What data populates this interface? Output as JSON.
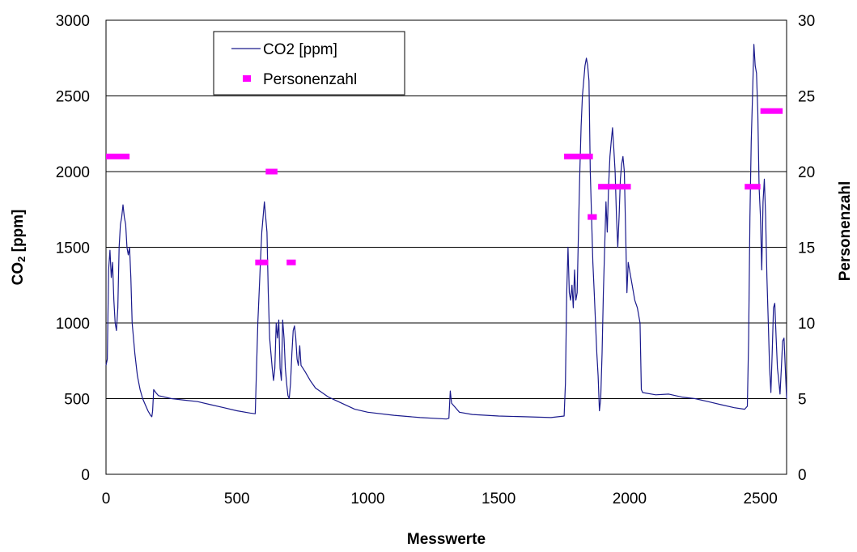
{
  "chart_data": {
    "type": "line",
    "xlabel": "Messwerte",
    "ylabel_main": "CO",
    "ylabel_sub": "2",
    "ylabel_unit": " [ppm]",
    "y2label": "Personenzahl",
    "xlim": [
      0,
      2600
    ],
    "ylim": [
      0,
      3000
    ],
    "y2lim": [
      0,
      30
    ],
    "x_ticks": [
      "0",
      "500",
      "1000",
      "1500",
      "2000",
      "2500"
    ],
    "y_ticks": [
      "0",
      "500",
      "1000",
      "1500",
      "2000",
      "2500",
      "3000"
    ],
    "y2_ticks": [
      "0",
      "5",
      "10",
      "15",
      "20",
      "25",
      "30"
    ],
    "grid": "horizontal",
    "legend_placement": "top-left",
    "legend": [
      "CO2 [ppm]",
      "Personenzahl"
    ],
    "colors": {
      "co2": "#1a1a8c",
      "persons": "#ff00ff"
    },
    "series": [
      {
        "name": "CO2 [ppm]",
        "points": [
          [
            0,
            720
          ],
          [
            5,
            760
          ],
          [
            10,
            1350
          ],
          [
            15,
            1480
          ],
          [
            20,
            1300
          ],
          [
            25,
            1400
          ],
          [
            30,
            1150
          ],
          [
            35,
            1000
          ],
          [
            40,
            950
          ],
          [
            45,
            1100
          ],
          [
            50,
            1500
          ],
          [
            55,
            1650
          ],
          [
            60,
            1700
          ],
          [
            65,
            1780
          ],
          [
            70,
            1700
          ],
          [
            75,
            1650
          ],
          [
            80,
            1500
          ],
          [
            85,
            1450
          ],
          [
            90,
            1500
          ],
          [
            95,
            1300
          ],
          [
            100,
            1000
          ],
          [
            110,
            800
          ],
          [
            120,
            650
          ],
          [
            130,
            560
          ],
          [
            140,
            500
          ],
          [
            150,
            460
          ],
          [
            160,
            420
          ],
          [
            170,
            390
          ],
          [
            175,
            380
          ],
          [
            178,
            420
          ],
          [
            182,
            560
          ],
          [
            190,
            540
          ],
          [
            200,
            520
          ],
          [
            250,
            500
          ],
          [
            300,
            490
          ],
          [
            350,
            480
          ],
          [
            400,
            460
          ],
          [
            450,
            440
          ],
          [
            500,
            420
          ],
          [
            550,
            405
          ],
          [
            570,
            400
          ],
          [
            575,
            700
          ],
          [
            580,
            1000
          ],
          [
            585,
            1200
          ],
          [
            590,
            1400
          ],
          [
            595,
            1600
          ],
          [
            600,
            1700
          ],
          [
            605,
            1800
          ],
          [
            610,
            1700
          ],
          [
            615,
            1600
          ],
          [
            620,
            1200
          ],
          [
            625,
            900
          ],
          [
            630,
            800
          ],
          [
            635,
            700
          ],
          [
            640,
            620
          ],
          [
            645,
            700
          ],
          [
            650,
            1000
          ],
          [
            655,
            900
          ],
          [
            660,
            1020
          ],
          [
            665,
            700
          ],
          [
            670,
            620
          ],
          [
            675,
            1020
          ],
          [
            680,
            900
          ],
          [
            685,
            700
          ],
          [
            690,
            600
          ],
          [
            695,
            520
          ],
          [
            700,
            500
          ],
          [
            705,
            600
          ],
          [
            710,
            800
          ],
          [
            715,
            950
          ],
          [
            720,
            980
          ],
          [
            725,
            900
          ],
          [
            730,
            760
          ],
          [
            735,
            720
          ],
          [
            740,
            850
          ],
          [
            745,
            720
          ],
          [
            760,
            680
          ],
          [
            780,
            620
          ],
          [
            800,
            570
          ],
          [
            850,
            510
          ],
          [
            900,
            470
          ],
          [
            950,
            430
          ],
          [
            1000,
            410
          ],
          [
            1100,
            390
          ],
          [
            1200,
            375
          ],
          [
            1300,
            365
          ],
          [
            1310,
            370
          ],
          [
            1315,
            550
          ],
          [
            1320,
            470
          ],
          [
            1350,
            410
          ],
          [
            1400,
            395
          ],
          [
            1500,
            385
          ],
          [
            1600,
            380
          ],
          [
            1700,
            375
          ],
          [
            1750,
            385
          ],
          [
            1755,
            600
          ],
          [
            1760,
            1200
          ],
          [
            1765,
            1500
          ],
          [
            1770,
            1200
          ],
          [
            1775,
            1150
          ],
          [
            1780,
            1250
          ],
          [
            1785,
            1100
          ],
          [
            1790,
            1350
          ],
          [
            1795,
            1150
          ],
          [
            1800,
            1200
          ],
          [
            1805,
            1600
          ],
          [
            1810,
            2000
          ],
          [
            1815,
            2300
          ],
          [
            1820,
            2500
          ],
          [
            1825,
            2600
          ],
          [
            1830,
            2700
          ],
          [
            1835,
            2750
          ],
          [
            1840,
            2700
          ],
          [
            1845,
            2600
          ],
          [
            1850,
            2000
          ],
          [
            1855,
            1700
          ],
          [
            1860,
            1400
          ],
          [
            1865,
            1200
          ],
          [
            1870,
            1000
          ],
          [
            1875,
            800
          ],
          [
            1880,
            650
          ],
          [
            1885,
            420
          ],
          [
            1890,
            500
          ],
          [
            1895,
            800
          ],
          [
            1900,
            1200
          ],
          [
            1905,
            1500
          ],
          [
            1910,
            1800
          ],
          [
            1915,
            1600
          ],
          [
            1920,
            1900
          ],
          [
            1925,
            2100
          ],
          [
            1930,
            2200
          ],
          [
            1935,
            2290
          ],
          [
            1940,
            2150
          ],
          [
            1945,
            2000
          ],
          [
            1950,
            1700
          ],
          [
            1955,
            1500
          ],
          [
            1960,
            1700
          ],
          [
            1965,
            1950
          ],
          [
            1970,
            2050
          ],
          [
            1975,
            2100
          ],
          [
            1980,
            2000
          ],
          [
            1985,
            1600
          ],
          [
            1990,
            1200
          ],
          [
            1995,
            1400
          ],
          [
            2000,
            1350
          ],
          [
            2010,
            1250
          ],
          [
            2020,
            1150
          ],
          [
            2030,
            1100
          ],
          [
            2040,
            1000
          ],
          [
            2045,
            560
          ],
          [
            2050,
            540
          ],
          [
            2100,
            525
          ],
          [
            2150,
            530
          ],
          [
            2200,
            510
          ],
          [
            2250,
            500
          ],
          [
            2300,
            480
          ],
          [
            2350,
            460
          ],
          [
            2400,
            440
          ],
          [
            2440,
            430
          ],
          [
            2450,
            450
          ],
          [
            2455,
            900
          ],
          [
            2460,
            1700
          ],
          [
            2465,
            2200
          ],
          [
            2470,
            2500
          ],
          [
            2475,
            2840
          ],
          [
            2480,
            2700
          ],
          [
            2485,
            2650
          ],
          [
            2490,
            2400
          ],
          [
            2495,
            1900
          ],
          [
            2500,
            1700
          ],
          [
            2505,
            1350
          ],
          [
            2510,
            1800
          ],
          [
            2515,
            1950
          ],
          [
            2520,
            1700
          ],
          [
            2525,
            1300
          ],
          [
            2530,
            1000
          ],
          [
            2535,
            700
          ],
          [
            2540,
            540
          ],
          [
            2545,
            800
          ],
          [
            2550,
            1100
          ],
          [
            2555,
            1130
          ],
          [
            2560,
            900
          ],
          [
            2565,
            700
          ],
          [
            2570,
            620
          ],
          [
            2575,
            530
          ],
          [
            2580,
            700
          ],
          [
            2585,
            880
          ],
          [
            2590,
            900
          ],
          [
            2595,
            700
          ],
          [
            2600,
            500
          ]
        ]
      },
      {
        "name": "Personenzahl",
        "segments": [
          {
            "x_start": 0,
            "x_end": 90,
            "value": 21
          },
          {
            "x_start": 570,
            "x_end": 620,
            "value": 14
          },
          {
            "x_start": 610,
            "x_end": 655,
            "value": 20
          },
          {
            "x_start": 690,
            "x_end": 725,
            "value": 14
          },
          {
            "x_start": 1750,
            "x_end": 1860,
            "value": 21
          },
          {
            "x_start": 1840,
            "x_end": 1875,
            "value": 17
          },
          {
            "x_start": 1880,
            "x_end": 2005,
            "value": 19
          },
          {
            "x_start": 2440,
            "x_end": 2500,
            "value": 19
          },
          {
            "x_start": 2500,
            "x_end": 2585,
            "value": 24
          }
        ]
      }
    ]
  }
}
